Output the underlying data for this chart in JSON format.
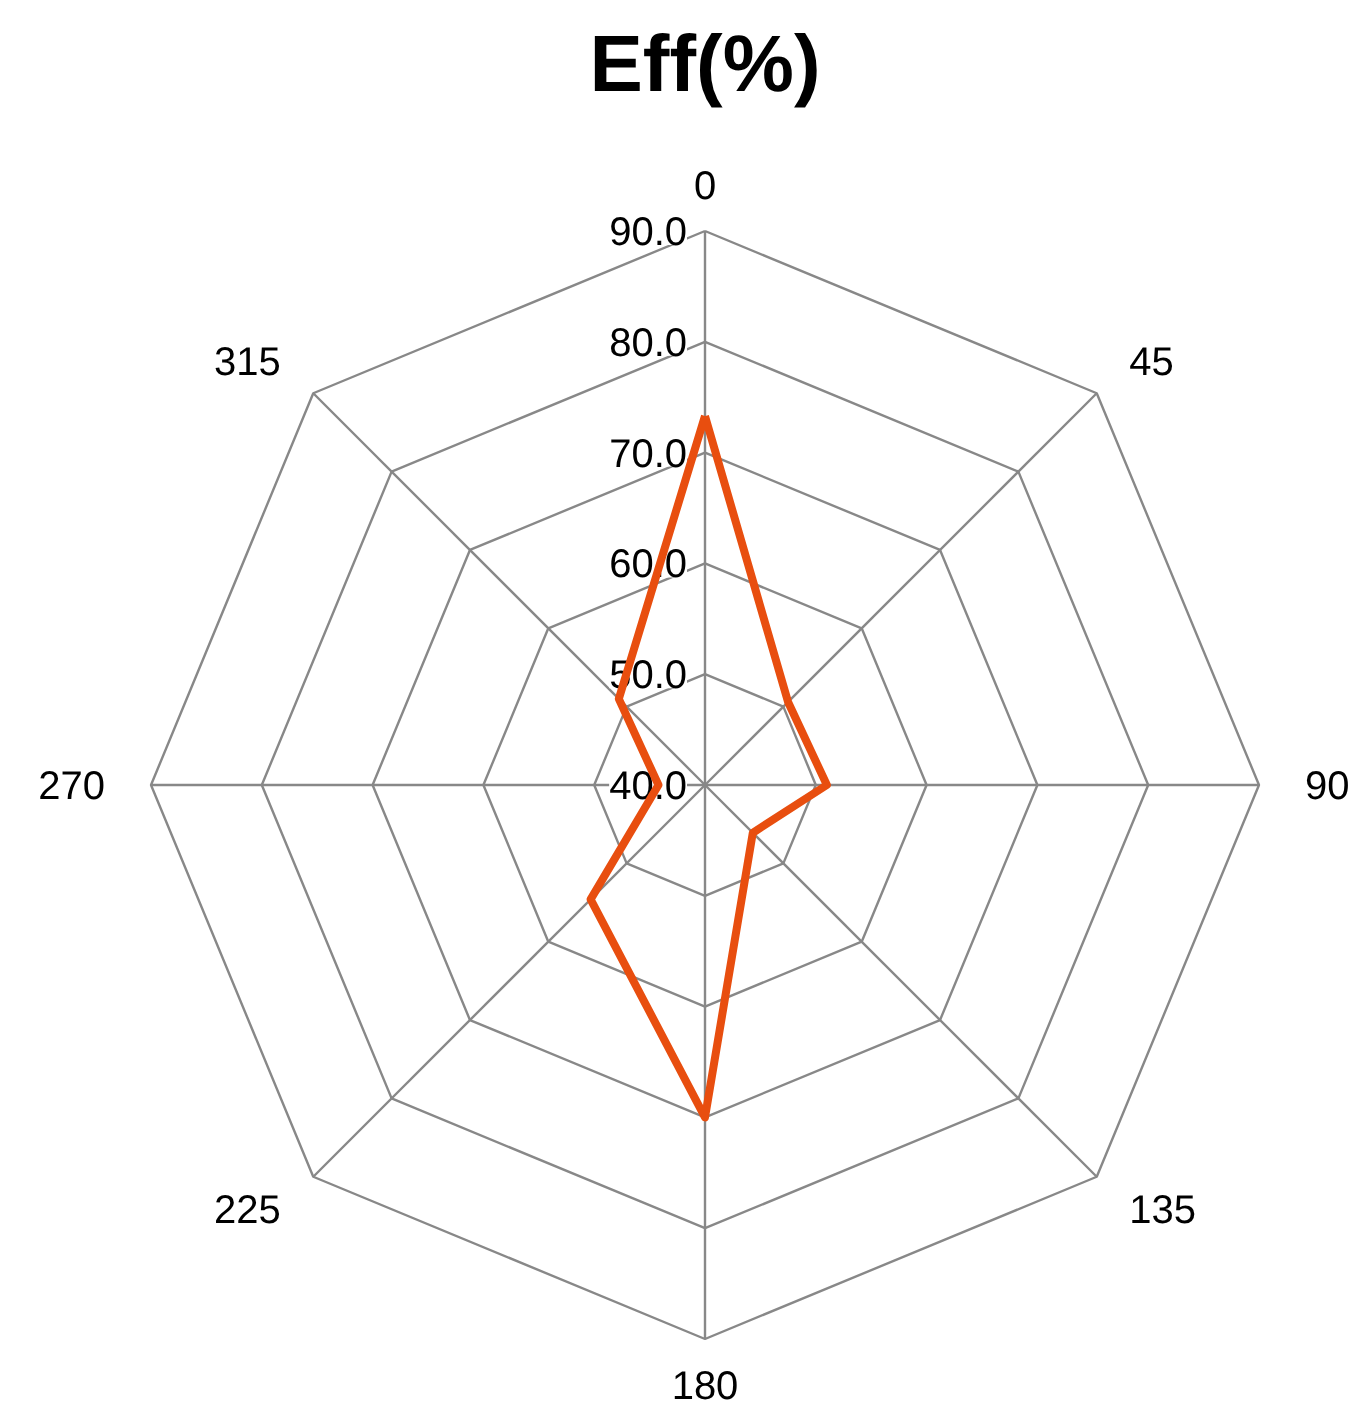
{
  "chart_data": {
    "type": "radar",
    "title": "Eff(%)",
    "categories": [
      "0",
      "45",
      "90",
      "135",
      "180",
      "225",
      "270",
      "315"
    ],
    "series": [
      {
        "color": "#e84e0f",
        "values": [
          73.3,
          50.6,
          51.0,
          46.1,
          70.0,
          54.6,
          44.2,
          51.0
        ]
      }
    ],
    "ylim": [
      40,
      90
    ],
    "yticks": [
      {
        "value": 40,
        "label": "40.0"
      },
      {
        "value": 50,
        "label": "50.0"
      },
      {
        "value": 60,
        "label": "60.0"
      },
      {
        "value": 70,
        "label": "70.0"
      },
      {
        "value": 80,
        "label": "80.0"
      },
      {
        "value": 90,
        "label": "90.0"
      }
    ],
    "grid": true,
    "marker": "none",
    "line_style": "solid"
  }
}
